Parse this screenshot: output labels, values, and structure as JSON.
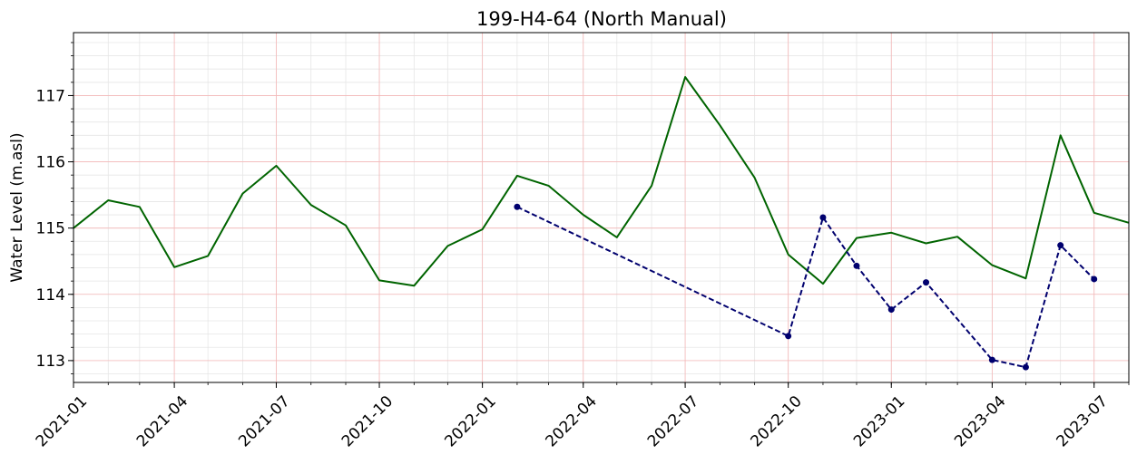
{
  "chart_data": {
    "type": "line",
    "title": "199-H4-64 (North Manual)",
    "xlabel": "",
    "ylabel": "Water Level (m.asl)",
    "xlim": [
      "2021-01-01",
      "2023-08-01"
    ],
    "ylim": [
      112.67,
      117.95
    ],
    "x_ticks": [
      "2021-01",
      "2021-04",
      "2021-07",
      "2021-10",
      "2022-01",
      "2022-04",
      "2022-07",
      "2022-10",
      "2023-01",
      "2023-04",
      "2023-07"
    ],
    "y_ticks": [
      113,
      114,
      115,
      116,
      117
    ],
    "grid": true,
    "series": [
      {
        "color": "#006400",
        "style": "solid",
        "markers": false,
        "points": [
          [
            "2021-01-01",
            115.0
          ],
          [
            "2021-02-01",
            115.42
          ],
          [
            "2021-03-01",
            115.32
          ],
          [
            "2021-04-01",
            114.41
          ],
          [
            "2021-05-01",
            114.58
          ],
          [
            "2021-06-01",
            115.52
          ],
          [
            "2021-07-01",
            115.94
          ],
          [
            "2021-08-01",
            115.35
          ],
          [
            "2021-09-01",
            115.04
          ],
          [
            "2021-10-01",
            114.21
          ],
          [
            "2021-11-01",
            114.13
          ],
          [
            "2021-12-01",
            114.73
          ],
          [
            "2022-01-01",
            114.98
          ],
          [
            "2022-02-01",
            115.79
          ],
          [
            "2022-03-01",
            115.64
          ],
          [
            "2022-04-01",
            115.2
          ],
          [
            "2022-05-01",
            114.86
          ],
          [
            "2022-06-01",
            115.64
          ],
          [
            "2022-07-01",
            117.28
          ],
          [
            "2022-08-01",
            116.55
          ],
          [
            "2022-09-01",
            115.76
          ],
          [
            "2022-10-01",
            114.6
          ],
          [
            "2022-11-01",
            114.16
          ],
          [
            "2022-12-01",
            114.85
          ],
          [
            "2023-01-01",
            114.93
          ],
          [
            "2023-02-01",
            114.77
          ],
          [
            "2023-03-01",
            114.87
          ],
          [
            "2023-04-01",
            114.44
          ],
          [
            "2023-05-01",
            114.24
          ],
          [
            "2023-06-01",
            116.4
          ],
          [
            "2023-07-01",
            115.23
          ],
          [
            "2023-08-01",
            115.08
          ]
        ]
      },
      {
        "color": "#00006e",
        "style": "dashed",
        "markers": true,
        "points": [
          [
            "2022-02-01",
            115.32
          ],
          [
            "2022-10-01",
            113.37
          ],
          [
            "2022-11-01",
            115.16
          ],
          [
            "2022-12-01",
            114.43
          ],
          [
            "2023-01-01",
            113.77
          ],
          [
            "2023-02-01",
            114.18
          ],
          [
            "2023-04-01",
            113.01
          ],
          [
            "2023-05-01",
            112.9
          ],
          [
            "2023-06-01",
            114.74
          ],
          [
            "2023-07-01",
            114.23
          ]
        ]
      }
    ]
  }
}
